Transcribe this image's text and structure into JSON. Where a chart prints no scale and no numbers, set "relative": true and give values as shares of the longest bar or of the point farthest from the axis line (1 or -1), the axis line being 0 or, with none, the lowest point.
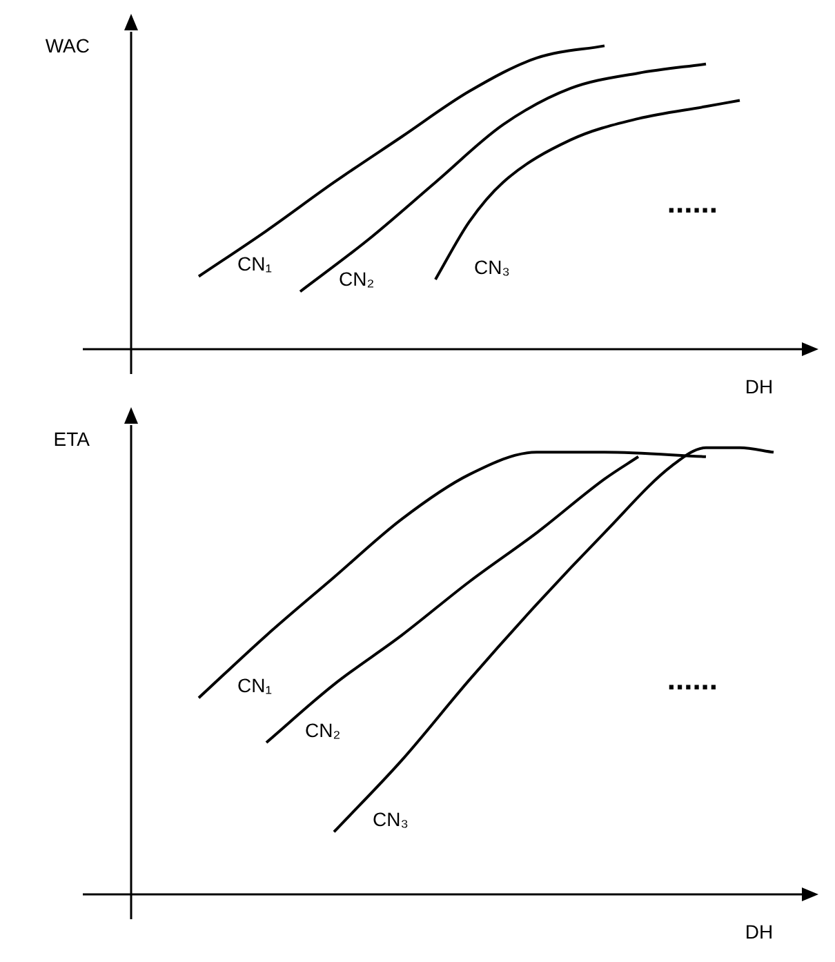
{
  "chart_data": [
    {
      "type": "line",
      "relative": true,
      "ylabel": "WAC",
      "xlabel": "DH",
      "legend": false,
      "tick_labels": false,
      "marker": "none",
      "annotations": [
        "......"
      ],
      "categories": [
        null,
        null,
        null,
        null,
        null,
        null,
        null,
        null,
        null,
        null,
        null,
        null,
        null,
        null,
        null,
        null,
        null,
        null,
        null,
        null,
        null
      ],
      "series": [
        {
          "name": "CN₁",
          "color": "#000000",
          "values": [
            null,
            null,
            0.24,
            null,
            0.39,
            null,
            0.55,
            null,
            0.7,
            null,
            0.85,
            null,
            0.96,
            null,
            1.0,
            null,
            null,
            null,
            null,
            null,
            null
          ]
        },
        {
          "name": "CN₂",
          "color": "#000000",
          "values": [
            null,
            null,
            null,
            null,
            null,
            0.19,
            null,
            0.36,
            null,
            0.55,
            null,
            0.74,
            null,
            0.86,
            null,
            0.91,
            null,
            0.94,
            null,
            null,
            null
          ]
        },
        {
          "name": "CN₃",
          "color": "#000000",
          "values": [
            null,
            null,
            null,
            null,
            null,
            null,
            null,
            null,
            null,
            0.23,
            0.42,
            0.55,
            null,
            0.69,
            null,
            0.76,
            null,
            0.8,
            0.82,
            null,
            null
          ]
        }
      ]
    },
    {
      "type": "line",
      "relative": true,
      "ylabel": "ETA",
      "xlabel": "DH",
      "legend": false,
      "tick_labels": false,
      "marker": "none",
      "annotations": [
        "......"
      ],
      "categories": [
        null,
        null,
        null,
        null,
        null,
        null,
        null,
        null,
        null,
        null,
        null,
        null,
        null,
        null,
        null,
        null,
        null,
        null,
        null,
        null,
        null
      ],
      "series": [
        {
          "name": "CN₁",
          "color": "#000000",
          "values": [
            null,
            null,
            0.44,
            null,
            0.58,
            null,
            0.71,
            null,
            0.84,
            null,
            0.94,
            null,
            0.99,
            null,
            0.99,
            null,
            null,
            0.98,
            null,
            null,
            null
          ]
        },
        {
          "name": "CN₂",
          "color": "#000000",
          "values": [
            null,
            null,
            null,
            null,
            0.34,
            null,
            0.47,
            null,
            0.58,
            null,
            0.7,
            null,
            0.81,
            null,
            0.93,
            0.98,
            null,
            null,
            null,
            null,
            null
          ]
        },
        {
          "name": "CN₃",
          "color": "#000000",
          "values": [
            null,
            null,
            null,
            null,
            null,
            null,
            0.14,
            null,
            0.3,
            null,
            0.48,
            null,
            0.65,
            null,
            0.81,
            null,
            0.96,
            1.0,
            1.0,
            0.99,
            null
          ]
        }
      ]
    }
  ]
}
